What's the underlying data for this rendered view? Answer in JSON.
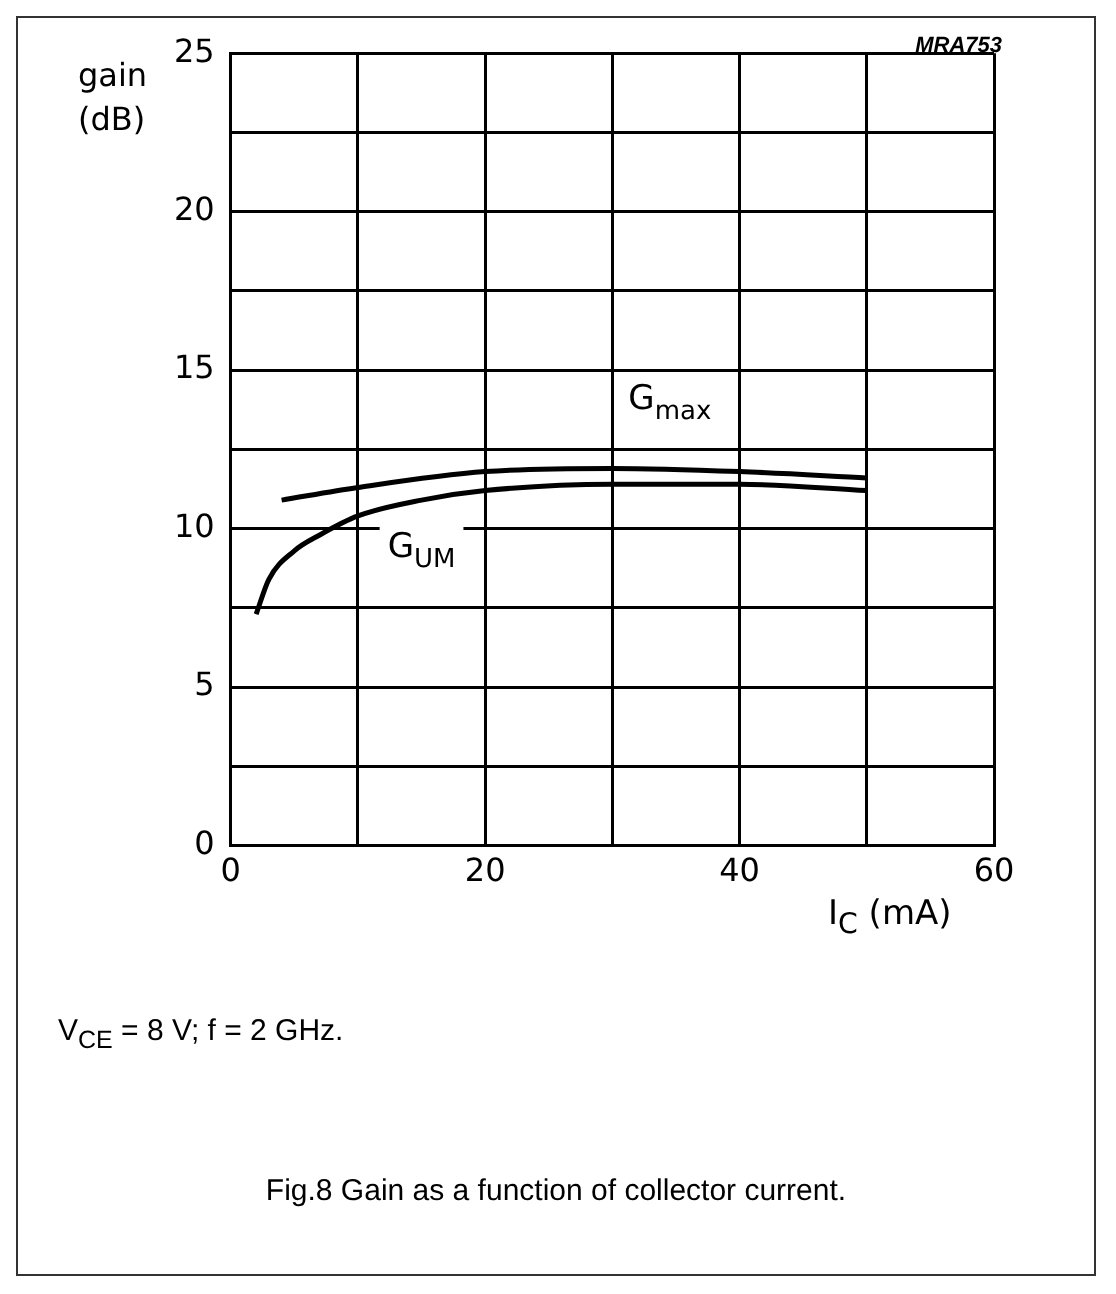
{
  "chart_data": {
    "type": "line",
    "ylabel": "gain\n(dB)",
    "xlabel": "I$_{C}$ (mA)",
    "annotations": [
      "MRA753",
      "V$_{CE}$ = 8 V; f = 2 GHz.",
      "Fig.8  Gain as a function of collector current."
    ],
    "series": [
      {
        "name": "G$_{max}$",
        "color": "#000000",
        "x": [
          4,
          10,
          20,
          30,
          40,
          50
        ],
        "values": [
          10.9,
          11.3,
          11.8,
          11.9,
          11.8,
          11.6
        ]
      },
      {
        "name": "G$_{UM}$",
        "color": "#000000",
        "x": [
          2,
          3,
          5,
          7,
          10,
          15,
          20,
          30,
          40,
          50
        ],
        "values": [
          7.3,
          8.4,
          9.3,
          9.8,
          10.4,
          10.9,
          11.2,
          11.4,
          11.4,
          11.2
        ]
      }
    ],
    "xlim": [
      0,
      60
    ],
    "xticks": [
      0,
      {
        "value": 10,
        "label": null
      },
      20,
      {
        "value": 30,
        "label": null
      },
      40,
      {
        "value": 50,
        "label": null
      },
      60
    ],
    "ylim": [
      0,
      25
    ],
    "yticks": [
      0,
      {
        "value": 2.5,
        "label": null
      },
      5,
      {
        "value": 7.5,
        "label": null
      },
      10,
      {
        "value": 12.5,
        "label": null
      },
      15,
      {
        "value": 17.5,
        "label": null
      },
      20,
      {
        "value": 22.5,
        "label": null
      },
      25
    ],
    "grid": true,
    "legend": false,
    "marker": "none",
    "line_style": "solid"
  }
}
